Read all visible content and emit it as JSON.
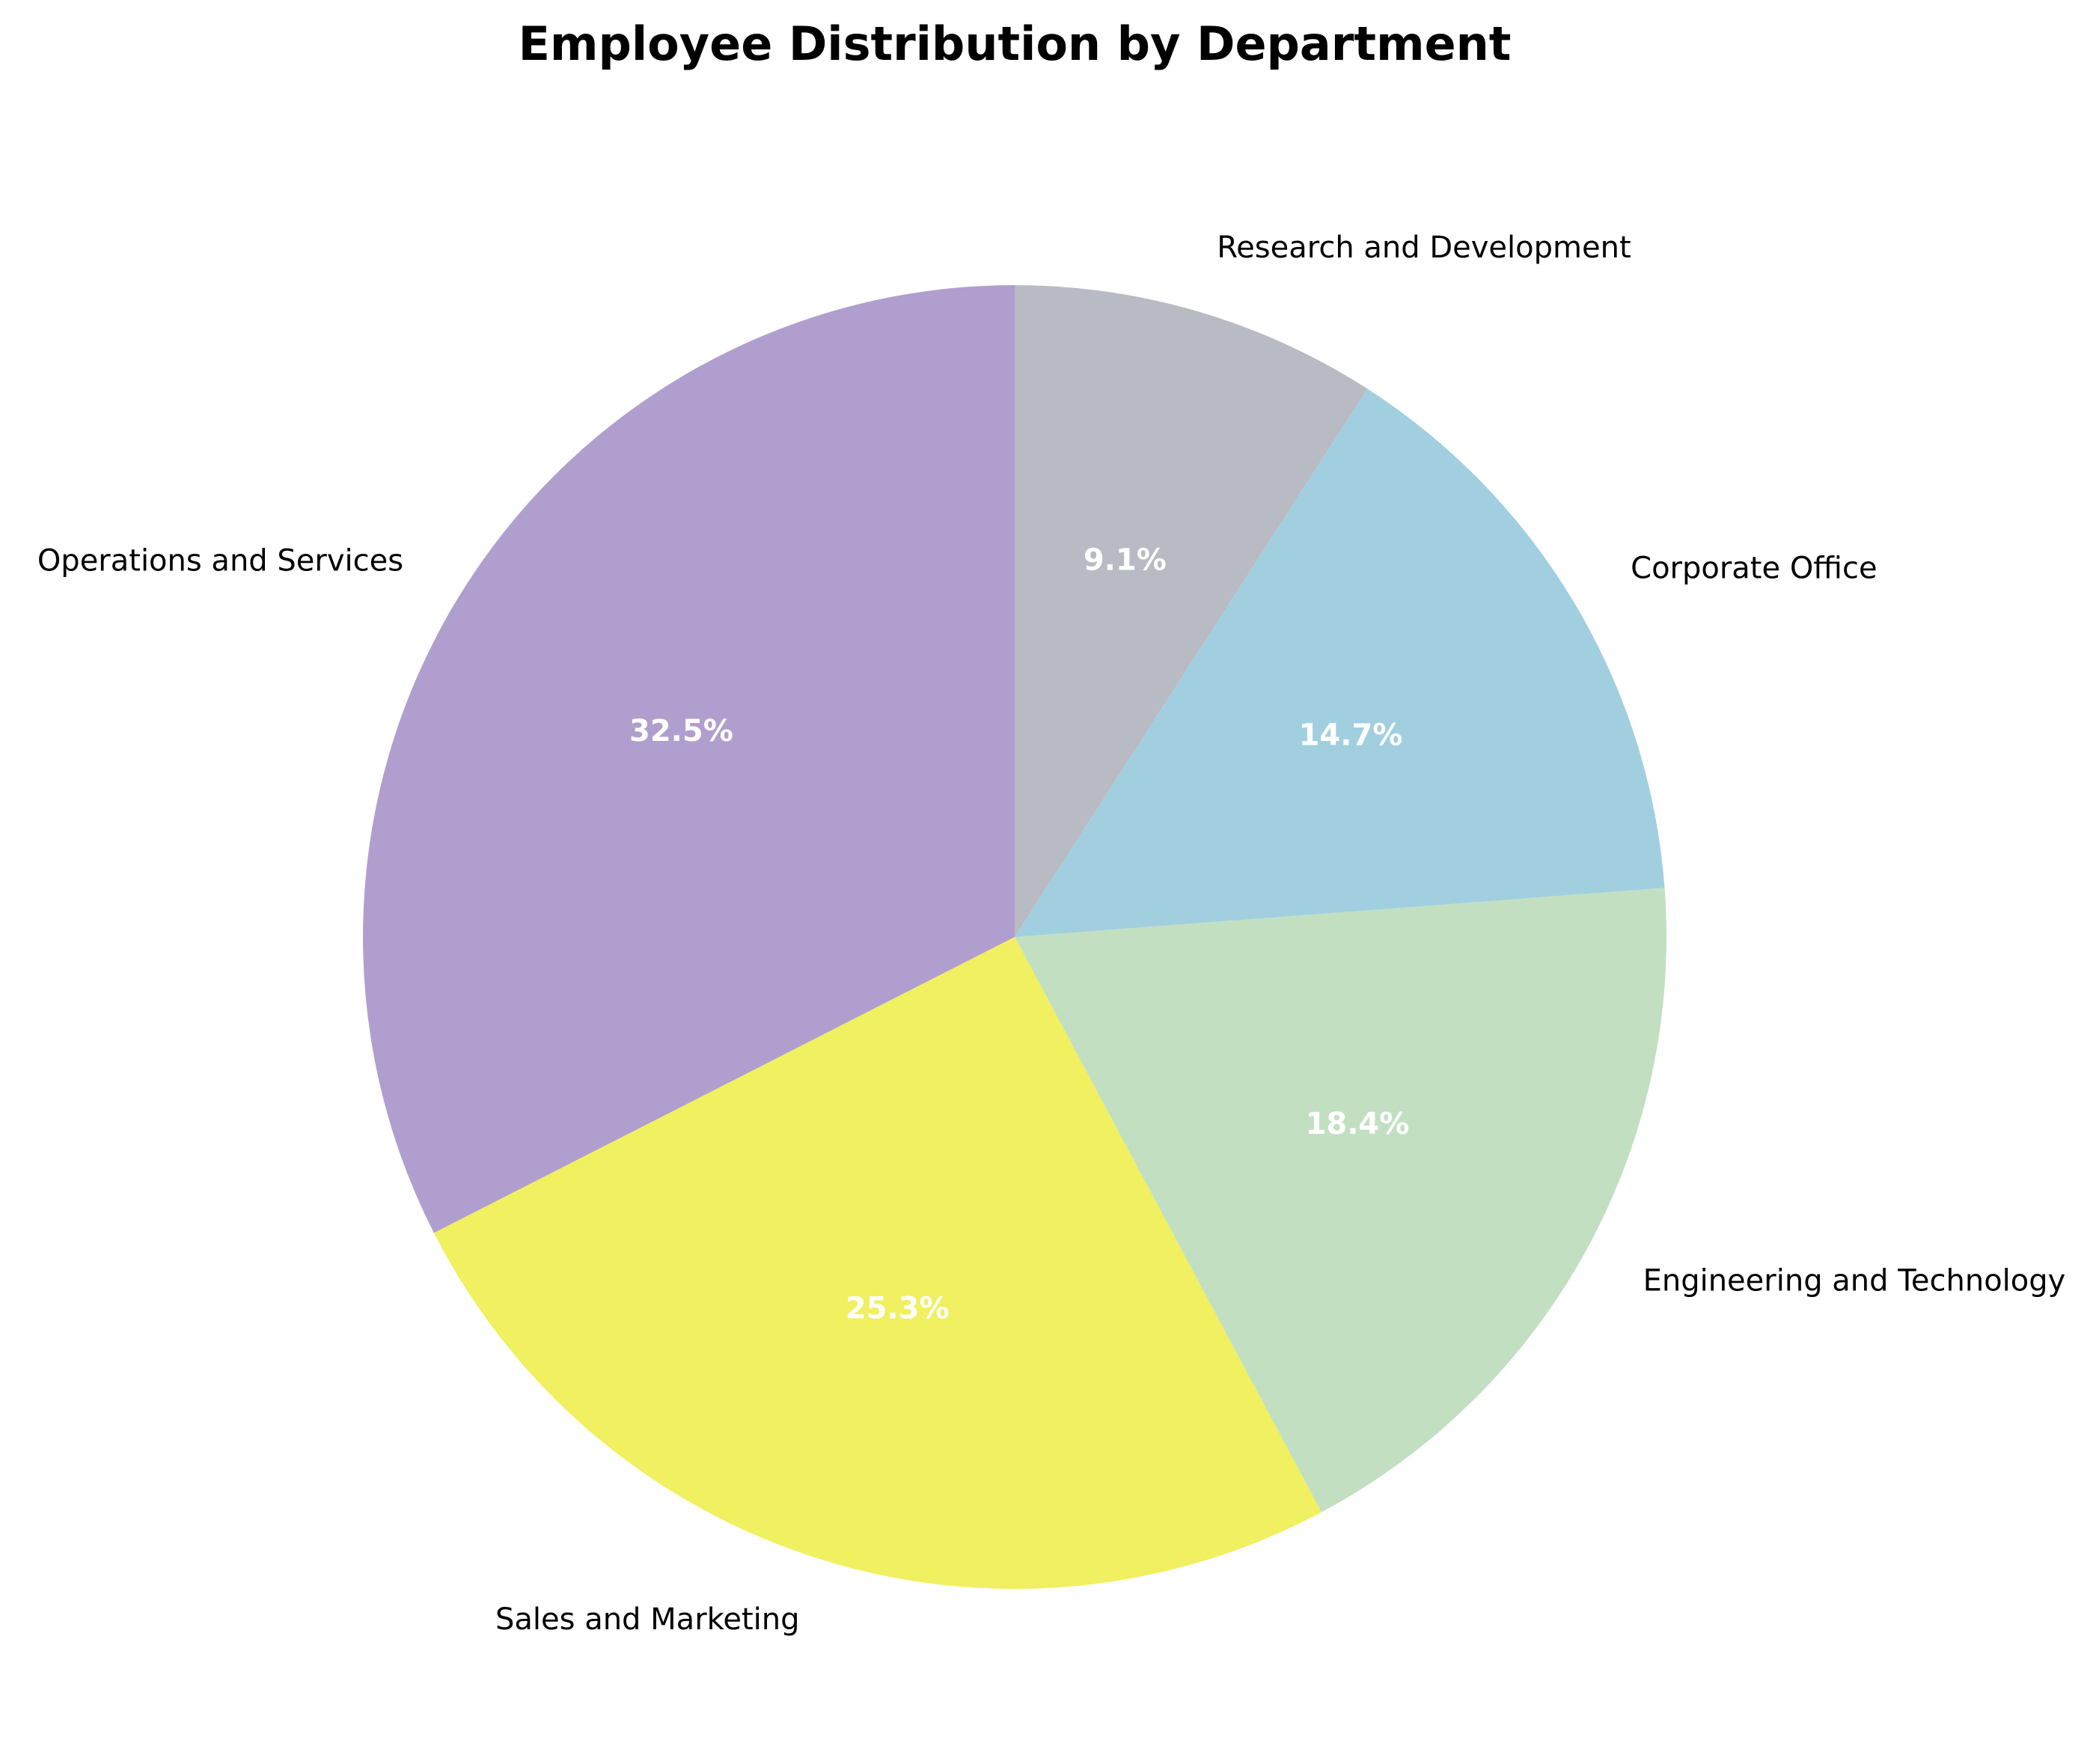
{
  "chart_data": {
    "type": "pie",
    "title": "Employee Distribution by Department",
    "start_angle_deg": 90,
    "direction": "counterclockwise",
    "slices": [
      {
        "label": "Operations and Services",
        "value": 32.5,
        "pct_label": "32.5%",
        "color": "#b09fce"
      },
      {
        "label": "Sales and Marketing",
        "value": 25.3,
        "pct_label": "25.3%",
        "color": "#f0f060"
      },
      {
        "label": "Engineering and Technology",
        "value": 18.4,
        "pct_label": "18.4%",
        "color": "#c2e0c1"
      },
      {
        "label": "Corporate Office",
        "value": 14.7,
        "pct_label": "14.7%",
        "color": "#a1cfdf"
      },
      {
        "label": "Research and Development",
        "value": 9.1,
        "pct_label": "9.1%",
        "color": "#b8bbc3"
      }
    ]
  }
}
